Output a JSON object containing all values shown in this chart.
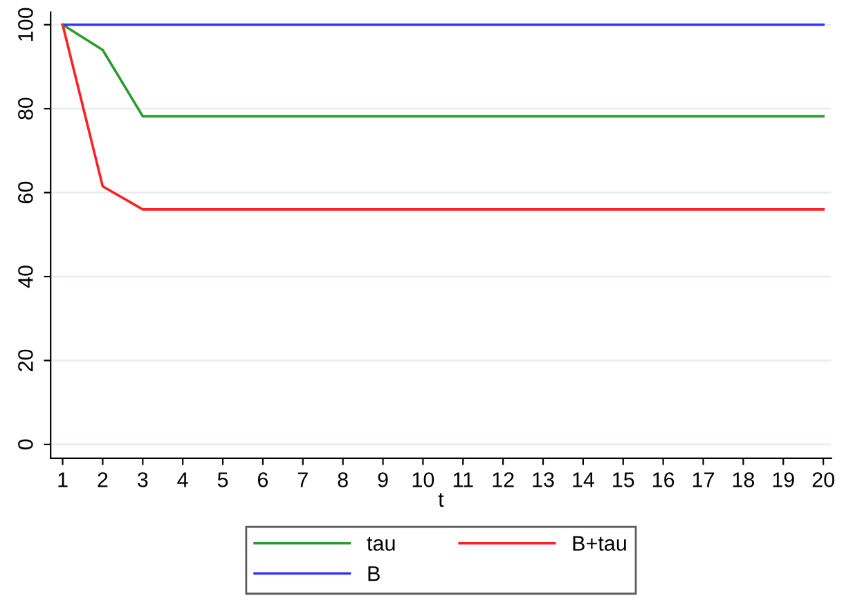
{
  "chart_data": {
    "type": "line",
    "xlabel": "t",
    "x": [
      1,
      2,
      3,
      4,
      5,
      6,
      7,
      8,
      9,
      10,
      11,
      12,
      13,
      14,
      15,
      16,
      17,
      18,
      19,
      20
    ],
    "series": [
      {
        "name": "tau",
        "color": "#2e9a2e",
        "values": [
          100,
          94,
          78.2,
          78.2,
          78.2,
          78.2,
          78.2,
          78.2,
          78.2,
          78.2,
          78.2,
          78.2,
          78.2,
          78.2,
          78.2,
          78.2,
          78.2,
          78.2,
          78.2,
          78.2
        ]
      },
      {
        "name": "B",
        "color": "#3232ff",
        "values": [
          100,
          100,
          100,
          100,
          100,
          100,
          100,
          100,
          100,
          100,
          100,
          100,
          100,
          100,
          100,
          100,
          100,
          100,
          100,
          100
        ]
      },
      {
        "name": "B+tau",
        "color": "#ff2020",
        "values": [
          100,
          61.5,
          56,
          56,
          56,
          56,
          56,
          56,
          56,
          56,
          56,
          56,
          56,
          56,
          56,
          56,
          56,
          56,
          56,
          56
        ]
      }
    ],
    "xlim": [
      0.7,
      20.2
    ],
    "xticks": [
      1,
      2,
      3,
      4,
      5,
      6,
      7,
      8,
      9,
      10,
      11,
      12,
      13,
      14,
      15,
      16,
      17,
      18,
      19,
      20
    ],
    "ylim": [
      -3.3,
      103
    ],
    "yticks": [
      0,
      20,
      40,
      60,
      80,
      100
    ],
    "grid": "y",
    "legend": "bottom",
    "marker": "none",
    "line_style": "solid"
  }
}
